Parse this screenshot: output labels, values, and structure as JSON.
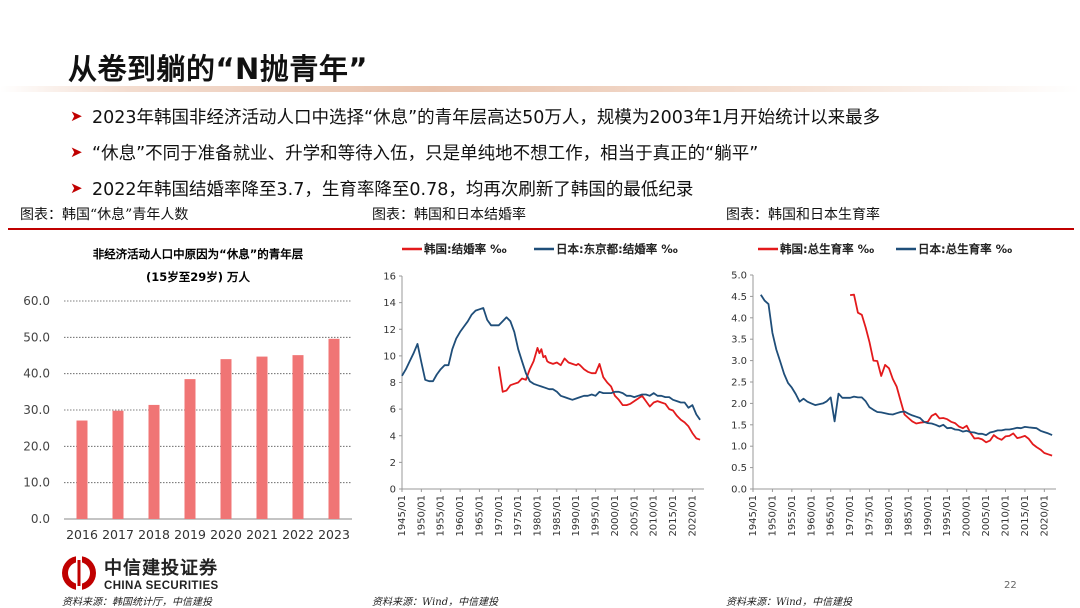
{
  "page_title": "从卷到躺的“N抛青年”",
  "bullets": [
    "2023年韩国非经济活动人口中选择“休息”的青年层高达50万人，规模为2003年1月开始统计以来最多",
    "“休息”不同于准备就业、升学和等待入伍，只是单纯地不想工作，相当于真正的“躺平”",
    "2022年韩国结婚率降至3.7，生育率降至0.78，均再次刷新了韩国的最低纪录"
  ],
  "panels": [
    {
      "caption": "图表：韩国“休息”青年人数",
      "source": "资料来源：韩国统计厅，中信建投"
    },
    {
      "caption": "图表：韩国和日本结婚率",
      "source": "资料来源：Wind，中信建投"
    },
    {
      "caption": "图表：韩国和日本生育率",
      "source": "资料来源：Wind，中信建投"
    }
  ],
  "logo": {
    "cn": "中信建投证券",
    "en": "CHINA SECURITIES"
  },
  "page_number": "22",
  "colors": {
    "accent": "#c00000",
    "bar": "#f07575",
    "korea": "#e31a1c",
    "japan": "#1f4e79"
  },
  "chart_data": [
    {
      "type": "bar",
      "title": "非经济活动人口中原因为“休息”的青年层",
      "subtitle": "(15岁至29岁) 万人",
      "categories": [
        "2016",
        "2017",
        "2018",
        "2019",
        "2020",
        "2021",
        "2022",
        "2023"
      ],
      "values": [
        27.1,
        29.8,
        31.4,
        38.5,
        44.0,
        44.7,
        45.1,
        49.6
      ],
      "ylim": [
        0,
        60
      ],
      "yticks": [
        "0.0",
        "10.0",
        "20.0",
        "30.0",
        "40.0",
        "50.0",
        "60.0"
      ],
      "grid": true
    },
    {
      "type": "line",
      "x_ticks": [
        "1945/01",
        "1950/01",
        "1955/01",
        "1960/01",
        "1965/01",
        "1970/01",
        "1975/01",
        "1980/01",
        "1985/01",
        "1990/01",
        "1995/01",
        "2000/01",
        "2005/01",
        "2010/01",
        "2015/01",
        "2020/01"
      ],
      "ylim": [
        0,
        16
      ],
      "yticks": [
        "0",
        "2",
        "4",
        "6",
        "8",
        "10",
        "12",
        "14",
        "16"
      ],
      "legend": "top",
      "series": [
        {
          "name": "韩国:结婚率 ‰",
          "color": "#e31a1c",
          "x": [
            1970,
            1971,
            1972,
            1973,
            1974,
            1975,
            1976,
            1977,
            1978,
            1979,
            1980,
            1980.5,
            1981,
            1981.5,
            1982,
            1982.5,
            1983,
            1984,
            1985,
            1986,
            1987,
            1988,
            1989,
            1990,
            1990.5,
            1991,
            1992,
            1993,
            1994,
            1995,
            1996,
            1997,
            1998,
            1999,
            2000,
            2001,
            2002,
            2003,
            2004,
            2005,
            2006,
            2007,
            2008,
            2009,
            2010,
            2011,
            2012,
            2013,
            2014,
            2015,
            2016,
            2017,
            2018,
            2019,
            2020,
            2021,
            2022
          ],
          "y": [
            9.2,
            7.3,
            7.4,
            7.8,
            7.9,
            8.0,
            8.3,
            8.2,
            9.0,
            9.6,
            10.6,
            10.2,
            10.5,
            9.9,
            10.0,
            9.6,
            9.5,
            9.4,
            9.5,
            9.3,
            9.8,
            9.5,
            9.4,
            9.3,
            9.4,
            9.3,
            9.0,
            8.8,
            8.7,
            8.7,
            9.4,
            8.4,
            8.0,
            7.7,
            7.0,
            6.7,
            6.3,
            6.3,
            6.4,
            6.6,
            6.8,
            7.0,
            6.6,
            6.2,
            6.5,
            6.6,
            6.5,
            6.4,
            6.0,
            5.9,
            5.5,
            5.2,
            5.0,
            4.7,
            4.2,
            3.8,
            3.7
          ]
        },
        {
          "name": "日本:东京都:结婚率 ‰",
          "color": "#1f4e79",
          "x": [
            1945,
            1946,
            1947,
            1948,
            1949,
            1950,
            1951,
            1952,
            1953,
            1954,
            1955,
            1956,
            1957,
            1958,
            1959,
            1960,
            1961,
            1962,
            1963,
            1964,
            1965,
            1966,
            1967,
            1968,
            1969,
            1970,
            1971,
            1972,
            1973,
            1974,
            1975,
            1976,
            1977,
            1978,
            1979,
            1980,
            1981,
            1982,
            1983,
            1984,
            1985,
            1986,
            1987,
            1988,
            1989,
            1990,
            1991,
            1992,
            1993,
            1994,
            1995,
            1996,
            1997,
            1998,
            1999,
            2000,
            2001,
            2002,
            2003,
            2004,
            2005,
            2006,
            2007,
            2008,
            2009,
            2010,
            2011,
            2012,
            2013,
            2014,
            2015,
            2016,
            2017,
            2018,
            2019,
            2020,
            2021,
            2022
          ],
          "y": [
            8.5,
            9.0,
            9.6,
            10.2,
            10.9,
            9.5,
            8.2,
            8.1,
            8.1,
            8.6,
            9.0,
            9.3,
            9.3,
            10.5,
            11.3,
            11.8,
            12.2,
            12.6,
            13.1,
            13.4,
            13.5,
            13.6,
            12.7,
            12.3,
            12.3,
            12.3,
            12.6,
            12.9,
            12.6,
            11.8,
            10.5,
            9.6,
            8.7,
            8.1,
            7.9,
            7.8,
            7.7,
            7.6,
            7.5,
            7.5,
            7.3,
            7.0,
            6.9,
            6.8,
            6.7,
            6.8,
            6.9,
            7.0,
            7.0,
            7.1,
            7.0,
            7.3,
            7.2,
            7.2,
            7.2,
            7.3,
            7.3,
            7.2,
            7.0,
            7.0,
            6.9,
            7.0,
            7.1,
            7.1,
            7.0,
            7.2,
            7.0,
            7.0,
            6.9,
            6.9,
            6.7,
            6.6,
            6.5,
            6.5,
            6.1,
            6.3,
            5.6,
            5.2
          ]
        }
      ]
    },
    {
      "type": "line",
      "x_ticks": [
        "1945/01",
        "1950/01",
        "1955/01",
        "1960/01",
        "1965/01",
        "1970/01",
        "1975/01",
        "1980/01",
        "1985/01",
        "1990/01",
        "1995/01",
        "2000/01",
        "2005/01",
        "2010/01",
        "2015/01",
        "2020/01"
      ],
      "ylim": [
        0,
        5
      ],
      "yticks": [
        "0.0",
        "0.5",
        "1.0",
        "1.5",
        "2.0",
        "2.5",
        "3.0",
        "3.5",
        "4.0",
        "4.5",
        "5.0"
      ],
      "legend": "top",
      "series": [
        {
          "name": "韩国:总生育率 ‰",
          "color": "#e31a1c",
          "x": [
            1970,
            1971,
            1972,
            1973,
            1974,
            1975,
            1976,
            1977,
            1978,
            1979,
            1980,
            1981,
            1982,
            1983,
            1984,
            1985,
            1986,
            1987,
            1988,
            1989,
            1990,
            1991,
            1992,
            1993,
            1994,
            1995,
            1996,
            1997,
            1998,
            1999,
            2000,
            2001,
            2002,
            2003,
            2004,
            2005,
            2006,
            2007,
            2008,
            2009,
            2010,
            2011,
            2012,
            2013,
            2014,
            2015,
            2016,
            2017,
            2018,
            2019,
            2020,
            2021,
            2022
          ],
          "y": [
            4.53,
            4.54,
            4.12,
            4.07,
            3.77,
            3.43,
            3.0,
            2.99,
            2.64,
            2.9,
            2.82,
            2.57,
            2.39,
            2.06,
            1.74,
            1.66,
            1.58,
            1.53,
            1.55,
            1.56,
            1.57,
            1.71,
            1.76,
            1.65,
            1.66,
            1.63,
            1.57,
            1.54,
            1.46,
            1.42,
            1.48,
            1.31,
            1.18,
            1.19,
            1.16,
            1.09,
            1.13,
            1.26,
            1.19,
            1.15,
            1.23,
            1.24,
            1.3,
            1.19,
            1.21,
            1.24,
            1.17,
            1.05,
            0.98,
            0.92,
            0.84,
            0.81,
            0.78
          ]
        },
        {
          "name": "日本:总生育率 ‰",
          "color": "#1f4e79",
          "x": [
            1947,
            1948,
            1949,
            1950,
            1951,
            1952,
            1953,
            1954,
            1955,
            1956,
            1957,
            1958,
            1959,
            1960,
            1961,
            1962,
            1963,
            1964,
            1965,
            1966,
            1967,
            1968,
            1969,
            1970,
            1971,
            1972,
            1973,
            1974,
            1975,
            1976,
            1977,
            1978,
            1979,
            1980,
            1981,
            1982,
            1983,
            1984,
            1985,
            1986,
            1987,
            1988,
            1989,
            1990,
            1991,
            1992,
            1993,
            1994,
            1995,
            1996,
            1997,
            1998,
            1999,
            2000,
            2001,
            2002,
            2003,
            2004,
            2005,
            2006,
            2007,
            2008,
            2009,
            2010,
            2011,
            2012,
            2013,
            2014,
            2015,
            2016,
            2017,
            2018,
            2019,
            2020,
            2021,
            2022
          ],
          "y": [
            4.54,
            4.4,
            4.32,
            3.65,
            3.26,
            2.98,
            2.69,
            2.48,
            2.37,
            2.22,
            2.04,
            2.11,
            2.04,
            2.0,
            1.96,
            1.98,
            2.0,
            2.05,
            2.14,
            1.58,
            2.23,
            2.13,
            2.13,
            2.13,
            2.16,
            2.14,
            2.14,
            2.05,
            1.91,
            1.85,
            1.8,
            1.79,
            1.77,
            1.75,
            1.74,
            1.77,
            1.8,
            1.81,
            1.76,
            1.72,
            1.69,
            1.66,
            1.57,
            1.54,
            1.53,
            1.5,
            1.46,
            1.5,
            1.42,
            1.43,
            1.39,
            1.38,
            1.34,
            1.36,
            1.33,
            1.32,
            1.29,
            1.29,
            1.26,
            1.32,
            1.34,
            1.37,
            1.37,
            1.39,
            1.39,
            1.41,
            1.43,
            1.42,
            1.45,
            1.44,
            1.43,
            1.42,
            1.36,
            1.33,
            1.3,
            1.26
          ]
        }
      ]
    }
  ]
}
